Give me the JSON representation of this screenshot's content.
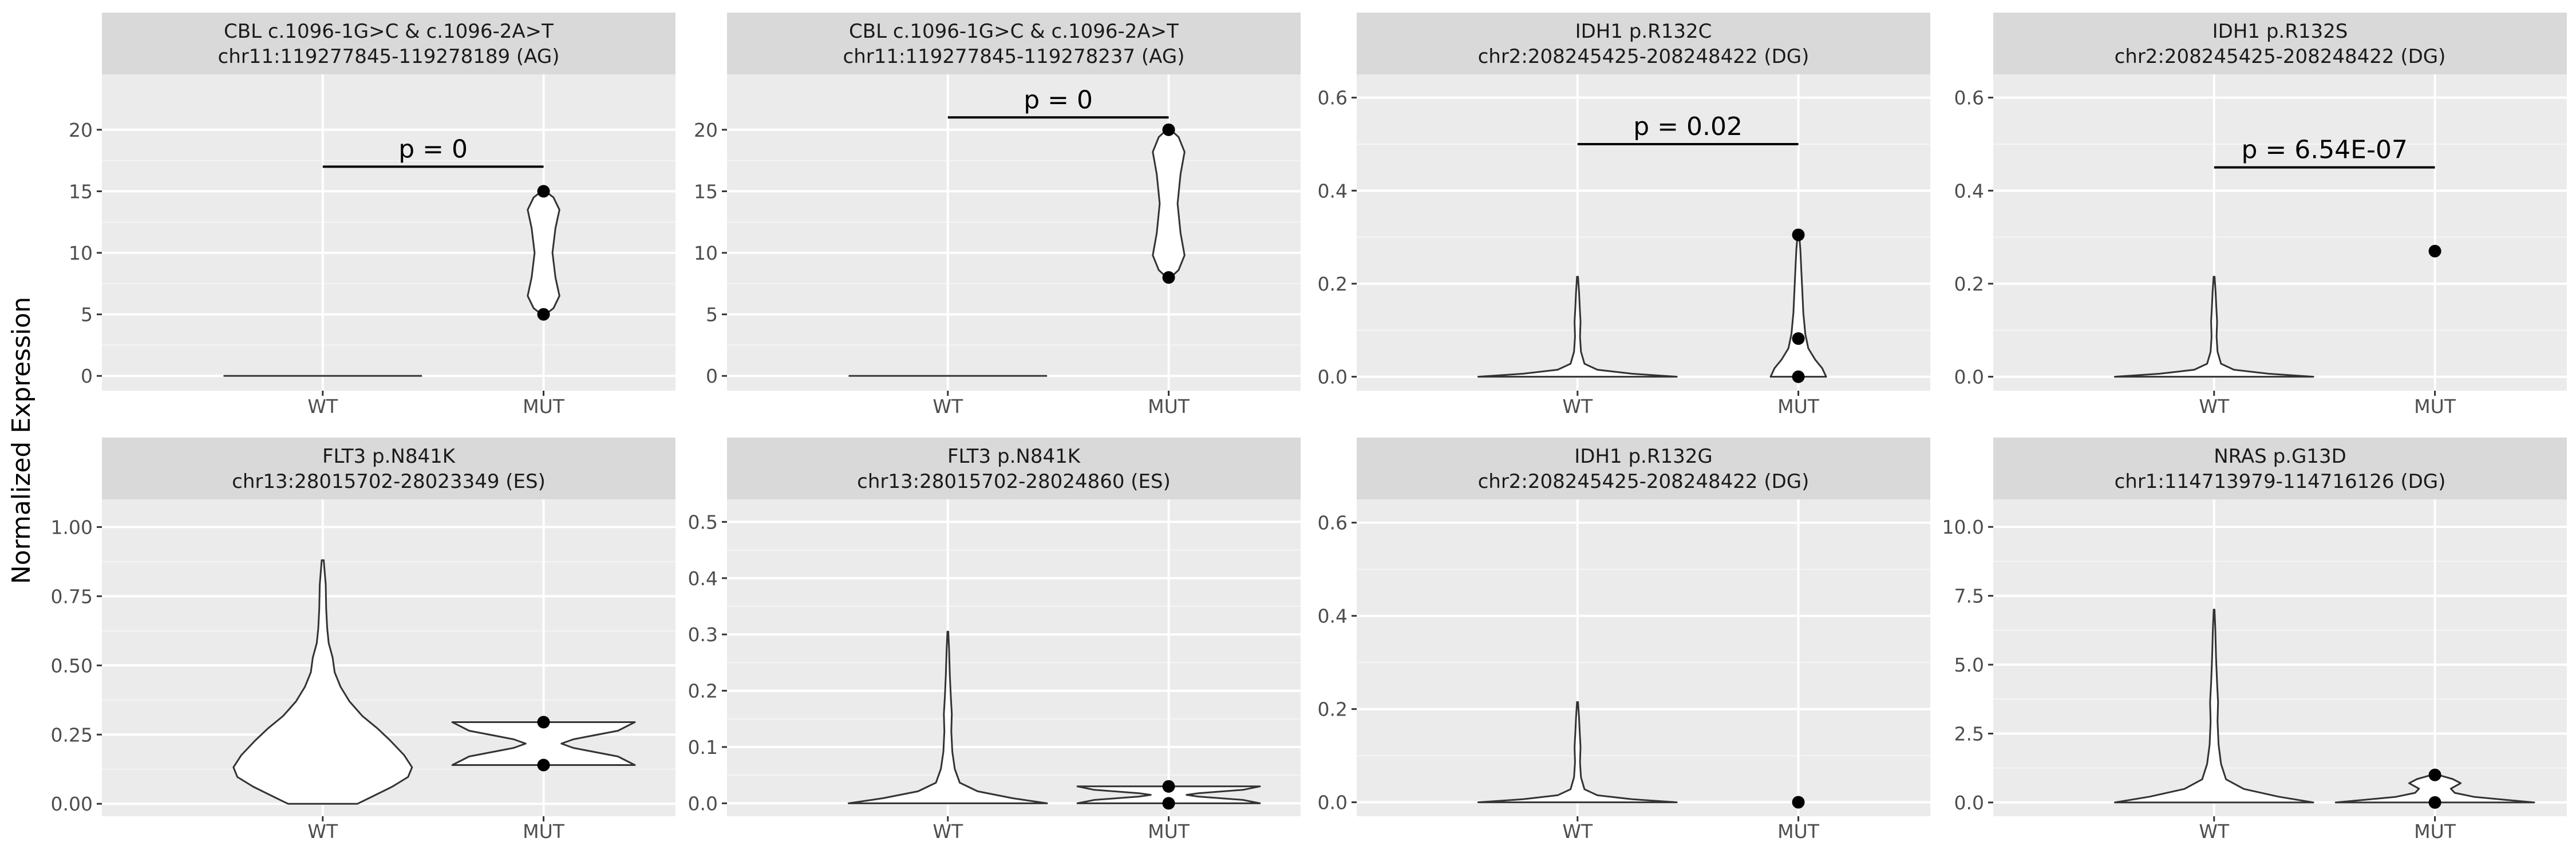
{
  "figure": {
    "ylabel": "Normalized Expression"
  },
  "chart_data": [
    {
      "type": "violin",
      "title_line1": "CBL c.1096-1G>C & c.1096-2A>T",
      "title_line2": "chr11:119277845-119278189 (AG)",
      "categories": [
        "WT",
        "MUT"
      ],
      "ylim": [
        -1.2,
        24.5
      ],
      "yticks": [
        0,
        5,
        10,
        15,
        20
      ],
      "yticklabels": [
        "0",
        "5",
        "10",
        "15",
        "20"
      ],
      "pvalue": "p = 0",
      "pvalue_y": 17,
      "violins": [
        {
          "group": "WT",
          "ymin": 0,
          "ymax": 0,
          "shape": "flat"
        },
        {
          "group": "MUT",
          "ymin": 5,
          "ymax": 15,
          "shape": "pair"
        }
      ],
      "points": [
        {
          "group": "MUT",
          "y": 15
        },
        {
          "group": "MUT",
          "y": 5
        }
      ]
    },
    {
      "type": "violin",
      "title_line1": "CBL c.1096-1G>C & c.1096-2A>T",
      "title_line2": "chr11:119277845-119278237 (AG)",
      "categories": [
        "WT",
        "MUT"
      ],
      "ylim": [
        -1.2,
        24.5
      ],
      "yticks": [
        0,
        5,
        10,
        15,
        20
      ],
      "yticklabels": [
        "0",
        "5",
        "10",
        "15",
        "20"
      ],
      "pvalue": "p = 0",
      "pvalue_y": 21,
      "violins": [
        {
          "group": "WT",
          "ymin": 0,
          "ymax": 0,
          "shape": "flat"
        },
        {
          "group": "MUT",
          "ymin": 8,
          "ymax": 20,
          "shape": "pair"
        }
      ],
      "points": [
        {
          "group": "MUT",
          "y": 20
        },
        {
          "group": "MUT",
          "y": 8
        }
      ]
    },
    {
      "type": "violin",
      "title_line1": "IDH1 p.R132C",
      "title_line2": "chr2:208245425-208248422 (DG)",
      "categories": [
        "WT",
        "MUT"
      ],
      "ylim": [
        -0.03,
        0.65
      ],
      "yticks": [
        0,
        0.2,
        0.4,
        0.6
      ],
      "yticklabels": [
        "0.0",
        "0.2",
        "0.4",
        "0.6"
      ],
      "pvalue": "p = 0.02",
      "pvalue_y": 0.5,
      "violins": [
        {
          "group": "WT",
          "ymin": 0,
          "ymax": 0.215,
          "shape": "wt-skinny"
        },
        {
          "group": "MUT",
          "ymin": 0,
          "ymax": 0.305,
          "shape": "mut-drop"
        }
      ],
      "points": [
        {
          "group": "MUT",
          "y": 0.305
        },
        {
          "group": "MUT",
          "y": 0.082
        },
        {
          "group": "MUT",
          "y": 0.0
        }
      ]
    },
    {
      "type": "violin",
      "title_line1": "IDH1 p.R132S",
      "title_line2": "chr2:208245425-208248422 (DG)",
      "categories": [
        "WT",
        "MUT"
      ],
      "ylim": [
        -0.03,
        0.65
      ],
      "yticks": [
        0,
        0.2,
        0.4,
        0.6
      ],
      "yticklabels": [
        "0.0",
        "0.2",
        "0.4",
        "0.6"
      ],
      "pvalue": "p = 6.54E-07",
      "pvalue_y": 0.45,
      "violins": [
        {
          "group": "WT",
          "ymin": 0,
          "ymax": 0.215,
          "shape": "wt-skinny"
        }
      ],
      "points": [
        {
          "group": "MUT",
          "y": 0.27
        }
      ]
    },
    {
      "type": "violin",
      "title_line1": "FLT3 p.N841K",
      "title_line2": "chr13:28015702-28023349 (ES)",
      "categories": [
        "WT",
        "MUT"
      ],
      "ylim": [
        -0.045,
        1.1
      ],
      "yticks": [
        0,
        0.25,
        0.5,
        0.75,
        1.0
      ],
      "yticklabels": [
        "0.00",
        "0.25",
        "0.50",
        "0.75",
        "1.00"
      ],
      "pvalue": "",
      "violins": [
        {
          "group": "WT",
          "ymin": 0,
          "ymax": 0.88,
          "shape": "wt-wide"
        },
        {
          "group": "MUT",
          "ymin": 0.14,
          "ymax": 0.295,
          "shape": "pair-wide"
        }
      ],
      "points": [
        {
          "group": "MUT",
          "y": 0.295
        },
        {
          "group": "MUT",
          "y": 0.14
        }
      ]
    },
    {
      "type": "violin",
      "title_line1": "FLT3 p.N841K",
      "title_line2": "chr13:28015702-28024860 (ES)",
      "categories": [
        "WT",
        "MUT"
      ],
      "ylim": [
        -0.023,
        0.54
      ],
      "yticks": [
        0,
        0.1,
        0.2,
        0.3,
        0.4,
        0.5
      ],
      "yticklabels": [
        "0.0",
        "0.1",
        "0.2",
        "0.3",
        "0.4",
        "0.5"
      ],
      "pvalue": "",
      "violins": [
        {
          "group": "WT",
          "ymin": 0,
          "ymax": 0.305,
          "shape": "wt-spike"
        },
        {
          "group": "MUT",
          "ymin": 0,
          "ymax": 0.03,
          "shape": "pair-wide"
        }
      ],
      "points": [
        {
          "group": "MUT",
          "y": 0.03
        },
        {
          "group": "MUT",
          "y": 0.0
        }
      ]
    },
    {
      "type": "violin",
      "title_line1": "IDH1 p.R132G",
      "title_line2": "chr2:208245425-208248422 (DG)",
      "categories": [
        "WT",
        "MUT"
      ],
      "ylim": [
        -0.03,
        0.65
      ],
      "yticks": [
        0,
        0.2,
        0.4,
        0.6
      ],
      "yticklabels": [
        "0.0",
        "0.2",
        "0.4",
        "0.6"
      ],
      "pvalue": "",
      "violins": [
        {
          "group": "WT",
          "ymin": 0,
          "ymax": 0.215,
          "shape": "wt-skinny"
        }
      ],
      "points": [
        {
          "group": "MUT",
          "y": 0.0
        }
      ]
    },
    {
      "type": "violin",
      "title_line1": "NRAS p.G13D",
      "title_line2": "chr1:114713979-114716126 (DG)",
      "categories": [
        "WT",
        "MUT"
      ],
      "ylim": [
        -0.5,
        11.0
      ],
      "yticks": [
        0,
        2.5,
        5.0,
        7.5,
        10.0
      ],
      "yticklabels": [
        "0.0",
        "2.5",
        "5.0",
        "7.5",
        "10.0"
      ],
      "pvalue": "",
      "violins": [
        {
          "group": "WT",
          "ymin": 0,
          "ymax": 7.0,
          "shape": "wt-spike"
        },
        {
          "group": "MUT",
          "ymin": 0,
          "ymax": 1.0,
          "shape": "mut-low"
        }
      ],
      "points": [
        {
          "group": "MUT",
          "y": 1.0
        },
        {
          "group": "MUT",
          "y": 0.0
        }
      ]
    }
  ]
}
